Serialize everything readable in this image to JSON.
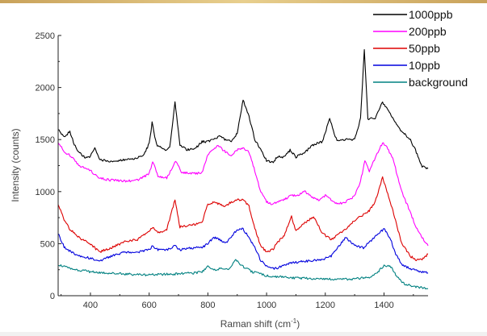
{
  "chart_data": {
    "type": "line",
    "title": "",
    "xlabel": "Raman shift (cm",
    "xlabel_sup": "-1",
    "xlabel_tail": ")",
    "ylabel": "Intensity (counts)",
    "xlim": [
      290,
      1550
    ],
    "ylim": [
      0,
      2500
    ],
    "xticks": [
      400,
      600,
      800,
      1000,
      1200,
      1400
    ],
    "yticks": [
      0,
      500,
      1000,
      1500,
      2000,
      2500
    ],
    "grid": false,
    "legend_position": "top-right",
    "series": [
      {
        "name": "1000ppb",
        "color": "#000000",
        "x": [
          290,
          310,
          330,
          345,
          360,
          380,
          400,
          415,
          430,
          460,
          500,
          540,
          580,
          600,
          610,
          625,
          650,
          670,
          688,
          705,
          730,
          760,
          780,
          800,
          820,
          840,
          860,
          880,
          900,
          920,
          940,
          960,
          980,
          1000,
          1020,
          1040,
          1060,
          1080,
          1100,
          1130,
          1160,
          1190,
          1215,
          1240,
          1270,
          1300,
          1320,
          1333,
          1345,
          1370,
          1395,
          1410,
          1430,
          1460,
          1490,
          1510,
          1530,
          1550
        ],
        "y": [
          1600,
          1520,
          1580,
          1450,
          1380,
          1330,
          1340,
          1420,
          1310,
          1290,
          1300,
          1310,
          1340,
          1460,
          1660,
          1450,
          1400,
          1420,
          1860,
          1450,
          1400,
          1420,
          1480,
          1480,
          1500,
          1530,
          1500,
          1480,
          1560,
          1880,
          1720,
          1500,
          1400,
          1300,
          1280,
          1340,
          1330,
          1400,
          1330,
          1380,
          1450,
          1480,
          1700,
          1480,
          1500,
          1500,
          1700,
          2370,
          1700,
          1700,
          1860,
          1800,
          1700,
          1580,
          1500,
          1380,
          1240,
          1220
        ]
      },
      {
        "name": "200ppb",
        "color": "#ff00ff",
        "x": [
          290,
          310,
          330,
          360,
          400,
          430,
          470,
          520,
          560,
          600,
          612,
          630,
          660,
          690,
          710,
          740,
          780,
          800,
          820,
          835,
          860,
          880,
          900,
          920,
          940,
          960,
          980,
          1000,
          1020,
          1040,
          1060,
          1080,
          1100,
          1130,
          1160,
          1180,
          1200,
          1220,
          1240,
          1270,
          1300,
          1320,
          1335,
          1350,
          1370,
          1395,
          1410,
          1430,
          1460,
          1490,
          1510,
          1530,
          1550
        ],
        "y": [
          1480,
          1380,
          1350,
          1250,
          1200,
          1130,
          1110,
          1100,
          1110,
          1170,
          1290,
          1150,
          1130,
          1290,
          1190,
          1170,
          1180,
          1360,
          1400,
          1440,
          1380,
          1350,
          1400,
          1420,
          1380,
          1200,
          1000,
          900,
          880,
          900,
          920,
          960,
          960,
          1000,
          940,
          920,
          960,
          920,
          880,
          900,
          960,
          1100,
          1300,
          1200,
          1320,
          1470,
          1420,
          1320,
          1000,
          800,
          650,
          560,
          480
        ]
      },
      {
        "name": "50ppb",
        "color": "#dd0000",
        "x": [
          290,
          310,
          330,
          360,
          400,
          430,
          470,
          520,
          560,
          600,
          612,
          630,
          660,
          688,
          705,
          740,
          780,
          800,
          820,
          840,
          860,
          880,
          900,
          920,
          940,
          960,
          980,
          1000,
          1020,
          1040,
          1060,
          1085,
          1100,
          1130,
          1160,
          1190,
          1220,
          1260,
          1300,
          1330,
          1350,
          1370,
          1395,
          1410,
          1430,
          1460,
          1490,
          1510,
          1530,
          1550
        ],
        "y": [
          880,
          730,
          640,
          560,
          500,
          420,
          460,
          520,
          540,
          620,
          660,
          600,
          640,
          920,
          660,
          680,
          700,
          880,
          900,
          880,
          860,
          900,
          920,
          920,
          860,
          650,
          480,
          420,
          440,
          520,
          580,
          760,
          620,
          700,
          760,
          600,
          540,
          620,
          720,
          780,
          820,
          900,
          1140,
          1000,
          820,
          500,
          380,
          340,
          350,
          400
        ]
      },
      {
        "name": "10ppb",
        "color": "#0000dd",
        "x": [
          290,
          310,
          330,
          360,
          400,
          430,
          470,
          520,
          560,
          600,
          612,
          630,
          660,
          688,
          705,
          740,
          780,
          800,
          820,
          840,
          860,
          880,
          900,
          920,
          940,
          960,
          980,
          1000,
          1020,
          1040,
          1060,
          1080,
          1100,
          1130,
          1160,
          1190,
          1220,
          1270,
          1300,
          1330,
          1360,
          1380,
          1400,
          1420,
          1440,
          1460,
          1490,
          1520,
          1550
        ],
        "y": [
          600,
          470,
          430,
          380,
          360,
          330,
          380,
          420,
          420,
          440,
          480,
          440,
          440,
          480,
          440,
          460,
          460,
          500,
          560,
          540,
          500,
          560,
          640,
          640,
          560,
          460,
          340,
          280,
          260,
          270,
          300,
          310,
          320,
          330,
          340,
          350,
          380,
          560,
          480,
          460,
          540,
          600,
          640,
          560,
          400,
          300,
          260,
          230,
          220
        ]
      },
      {
        "name": "background",
        "color": "#008080",
        "x": [
          290,
          330,
          400,
          500,
          600,
          700,
          760,
          780,
          800,
          820,
          845,
          870,
          895,
          920,
          950,
          1000,
          1100,
          1200,
          1300,
          1350,
          1380,
          1400,
          1420,
          1440,
          1470,
          1500,
          1550
        ],
        "y": [
          300,
          260,
          230,
          210,
          200,
          210,
          220,
          230,
          280,
          250,
          260,
          250,
          340,
          280,
          230,
          190,
          170,
          160,
          160,
          180,
          230,
          290,
          290,
          200,
          110,
          90,
          70
        ]
      }
    ]
  }
}
